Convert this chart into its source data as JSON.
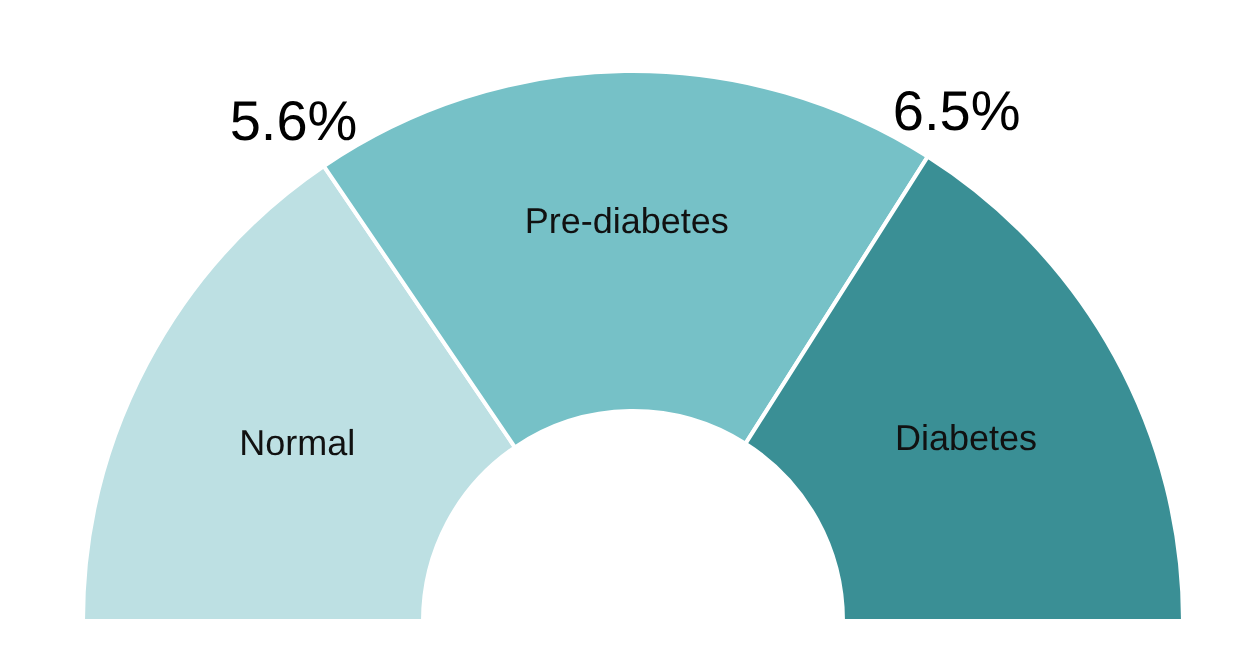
{
  "chart_data": {
    "type": "donut",
    "categories": [
      "Normal",
      "Pre-diabetes",
      "Diabetes"
    ],
    "values": [
      31,
      37,
      32
    ],
    "colors": [
      "#bde0e3",
      "#76c1c7",
      "#3a8f95"
    ],
    "annotations": [
      "5.6%",
      "6.5%"
    ]
  }
}
